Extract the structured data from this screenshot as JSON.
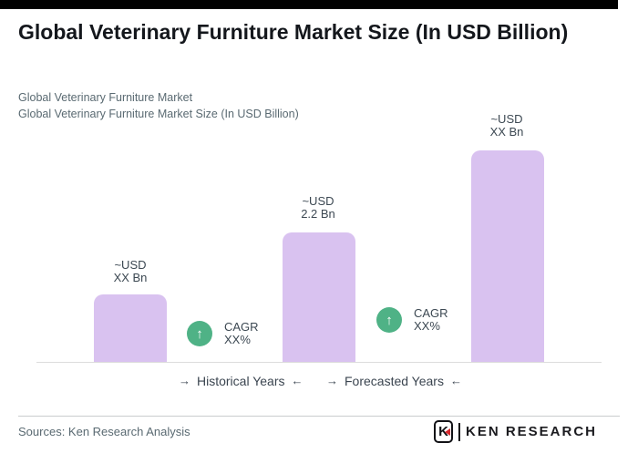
{
  "header": {
    "title": "Global Veterinary Furniture Market Size (In USD Billion)",
    "subtitle1": "Global Veterinary Furniture Market",
    "subtitle2": "Global Veterinary Furniture Market Size (In USD Billion)"
  },
  "chart_data": {
    "type": "bar",
    "title": "Global Veterinary Furniture Market Size (In USD Billion)",
    "unit": "USD Bn",
    "bars": [
      {
        "label_line1": "~USD",
        "label_line2": "XX Bn",
        "value": "XX",
        "height_pct": 32
      },
      {
        "label_line1": "~USD",
        "label_line2": "2.2 Bn",
        "value": "2.2",
        "height_pct": 61
      },
      {
        "label_line1": "~USD",
        "label_line2": "XX Bn",
        "value": "XX",
        "height_pct": 100
      }
    ],
    "values": [
      "XX",
      "2.2",
      "XX"
    ],
    "cagr_annotations": [
      {
        "line1": "CAGR",
        "line2": "XX%"
      },
      {
        "line1": "CAGR",
        "line2": "XX%"
      }
    ],
    "x_axis_phases": [
      "Historical Years",
      "Forecasted Years"
    ],
    "bar_color": "#d9c2f0",
    "cagr_icon_color": "#4fb286",
    "grid": false,
    "legend": false
  },
  "icons": {
    "arrow_right": "→",
    "arrow_left": "←",
    "up_arrow": "↑"
  },
  "footer": {
    "sources": "Sources: Ken Research Analysis",
    "logo_k": "K",
    "logo_text": "KEN RESEARCH"
  },
  "colors": {
    "top_bar": "#000000",
    "title_text": "#14171c",
    "subtitle_text": "#5a6a72",
    "bar_fill": "#d9c2f0",
    "cagr_green": "#4fb286",
    "label_text": "#3c4852",
    "logo_red": "#d6272c"
  }
}
